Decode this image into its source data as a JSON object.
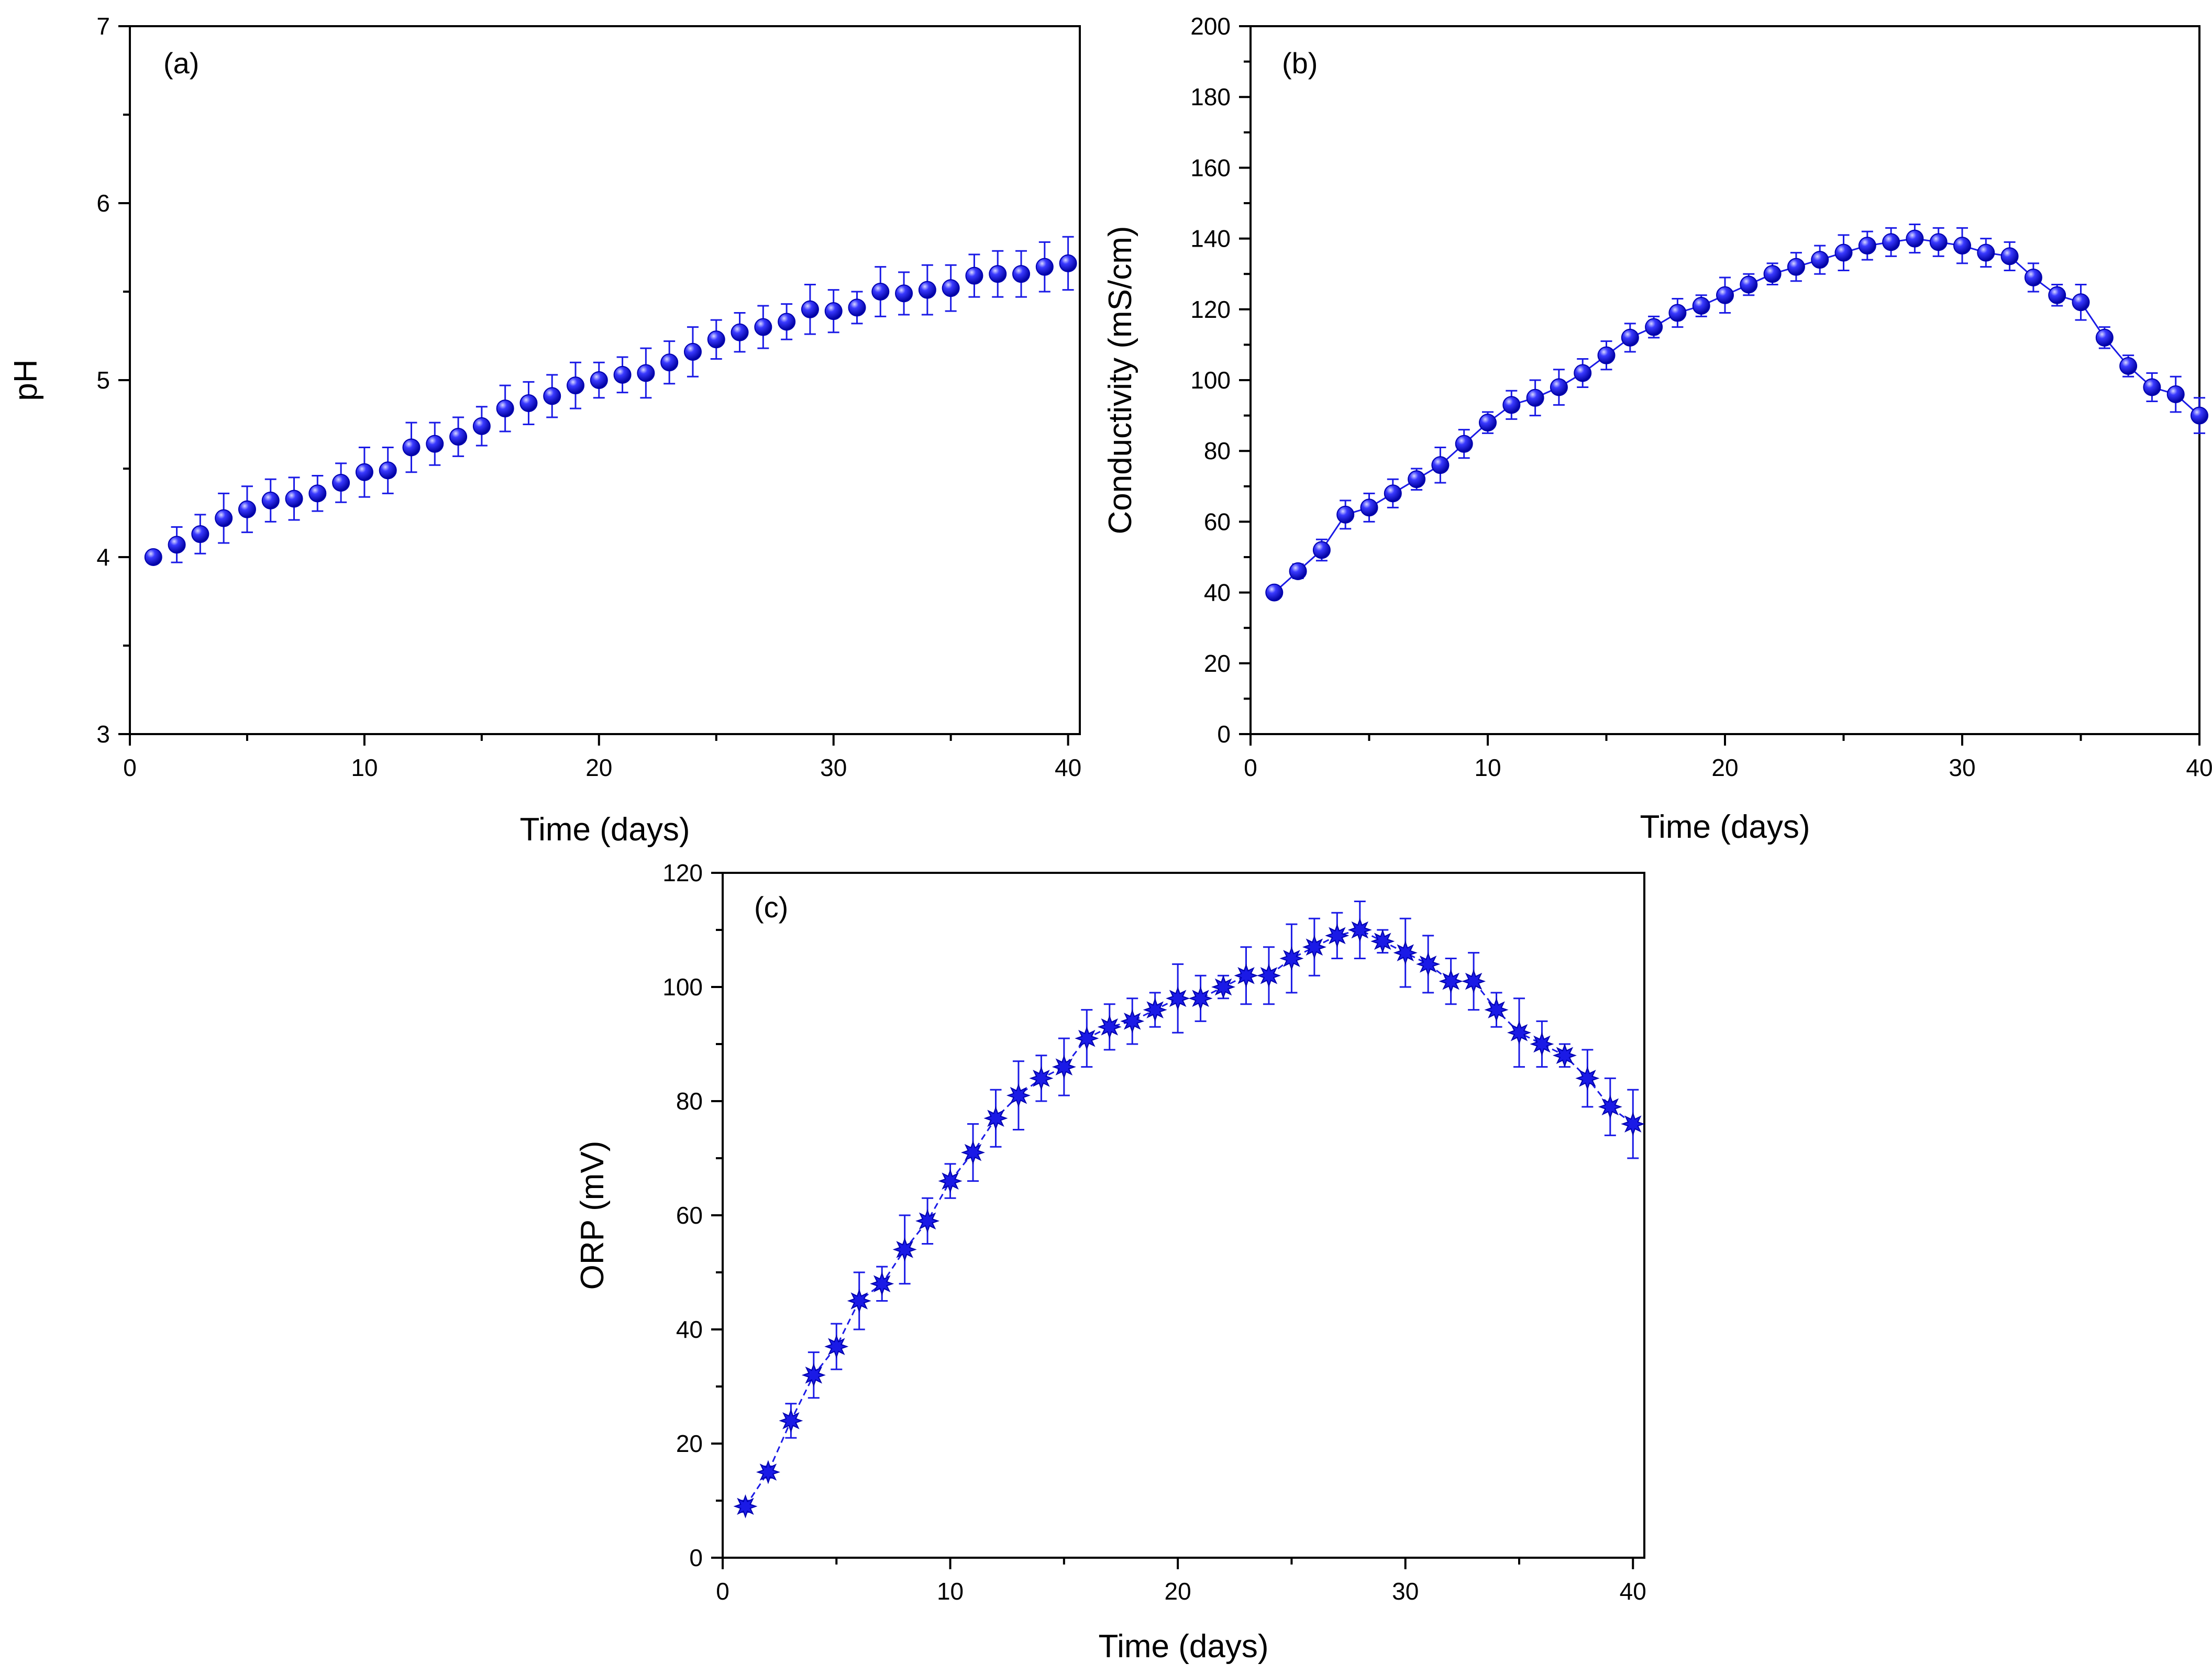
{
  "colors": {
    "marker": "#1a1ae6",
    "marker_dark": "#0000b0",
    "errorbar": "#1a1ae6",
    "line": "#1a1ae6",
    "axis": "#000000"
  },
  "chart_data": [
    {
      "id": "a",
      "type": "scatter",
      "panel_label": "(a)",
      "xlabel": "Time (days)",
      "ylabel": "pH",
      "xlim": [
        0,
        40.5
      ],
      "ylim": [
        3,
        7
      ],
      "xticks": [
        0,
        10,
        20,
        30,
        40
      ],
      "yticks": [
        3,
        4,
        5,
        6,
        7
      ],
      "marker": "sphere",
      "connect": false,
      "x": [
        1,
        2,
        3,
        4,
        5,
        6,
        7,
        8,
        9,
        10,
        11,
        12,
        13,
        14,
        15,
        16,
        17,
        18,
        19,
        20,
        21,
        22,
        23,
        24,
        25,
        26,
        27,
        28,
        29,
        30,
        31,
        32,
        33,
        34,
        35,
        36,
        37,
        38,
        39,
        40
      ],
      "y": [
        4.0,
        4.07,
        4.13,
        4.22,
        4.27,
        4.32,
        4.33,
        4.36,
        4.42,
        4.48,
        4.49,
        4.62,
        4.64,
        4.68,
        4.74,
        4.84,
        4.87,
        4.91,
        4.97,
        5.0,
        5.03,
        5.04,
        5.1,
        5.16,
        5.23,
        5.27,
        5.3,
        5.33,
        5.4,
        5.39,
        5.41,
        5.5,
        5.49,
        5.51,
        5.52,
        5.59,
        5.6,
        5.6,
        5.64,
        5.66
      ],
      "err": [
        0.02,
        0.1,
        0.11,
        0.14,
        0.13,
        0.12,
        0.12,
        0.1,
        0.11,
        0.14,
        0.13,
        0.14,
        0.12,
        0.11,
        0.11,
        0.13,
        0.12,
        0.12,
        0.13,
        0.1,
        0.1,
        0.14,
        0.12,
        0.14,
        0.11,
        0.11,
        0.12,
        0.1,
        0.14,
        0.12,
        0.09,
        0.14,
        0.12,
        0.14,
        0.13,
        0.12,
        0.13,
        0.13,
        0.14,
        0.15
      ]
    },
    {
      "id": "b",
      "type": "line",
      "panel_label": "(b)",
      "xlabel": "Time (days)",
      "ylabel": "Conductivity (mS/cm)",
      "xlim": [
        0,
        40
      ],
      "ylim": [
        0,
        200
      ],
      "xticks": [
        0,
        10,
        20,
        30,
        40
      ],
      "yticks": [
        0,
        20,
        40,
        60,
        80,
        100,
        120,
        140,
        160,
        180,
        200
      ],
      "marker": "sphere",
      "connect": true,
      "x": [
        1,
        2,
        3,
        4,
        5,
        6,
        7,
        8,
        9,
        10,
        11,
        12,
        13,
        14,
        15,
        16,
        17,
        18,
        19,
        20,
        21,
        22,
        23,
        24,
        25,
        26,
        27,
        28,
        29,
        30,
        31,
        32,
        33,
        34,
        35,
        36,
        37,
        38,
        39,
        40
      ],
      "y": [
        40,
        46,
        52,
        62,
        64,
        68,
        72,
        76,
        82,
        88,
        93,
        95,
        98,
        102,
        107,
        112,
        115,
        119,
        121,
        124,
        127,
        130,
        132,
        134,
        136,
        138,
        139,
        140,
        139,
        138,
        136,
        135,
        129,
        124,
        122,
        112,
        104,
        98,
        96,
        90
      ],
      "err": [
        1,
        2,
        3,
        4,
        4,
        4,
        3,
        5,
        4,
        3,
        4,
        5,
        5,
        4,
        4,
        4,
        3,
        4,
        3,
        5,
        3,
        3,
        4,
        4,
        5,
        4,
        4,
        4,
        4,
        5,
        4,
        4,
        4,
        3,
        5,
        3,
        3,
        4,
        5,
        5
      ]
    },
    {
      "id": "c",
      "type": "line",
      "panel_label": "(c)",
      "xlabel": "Time (days)",
      "ylabel": "ORP (mV)",
      "xlim": [
        0,
        40.5
      ],
      "ylim": [
        0,
        120
      ],
      "xticks": [
        0,
        10,
        20,
        30,
        40
      ],
      "yticks": [
        0,
        20,
        40,
        60,
        80,
        100,
        120
      ],
      "marker": "star",
      "connect": true,
      "dashed": true,
      "x": [
        1,
        2,
        3,
        4,
        5,
        6,
        7,
        8,
        9,
        10,
        11,
        12,
        13,
        14,
        15,
        16,
        17,
        18,
        19,
        20,
        21,
        22,
        23,
        24,
        25,
        26,
        27,
        28,
        29,
        30,
        31,
        32,
        33,
        34,
        35,
        36,
        37,
        38,
        39,
        40
      ],
      "y": [
        9,
        15,
        24,
        32,
        37,
        45,
        48,
        54,
        59,
        66,
        71,
        77,
        81,
        84,
        86,
        91,
        93,
        94,
        96,
        98,
        98,
        100,
        102,
        102,
        105,
        107,
        109,
        110,
        108,
        106,
        104,
        101,
        101,
        96,
        92,
        90,
        88,
        84,
        79,
        76
      ],
      "err": [
        1,
        1,
        3,
        4,
        4,
        5,
        3,
        6,
        4,
        3,
        5,
        5,
        6,
        4,
        5,
        5,
        4,
        4,
        3,
        6,
        4,
        2,
        5,
        5,
        6,
        5,
        4,
        5,
        2,
        6,
        5,
        4,
        5,
        3,
        6,
        4,
        2,
        5,
        5,
        6
      ]
    }
  ]
}
